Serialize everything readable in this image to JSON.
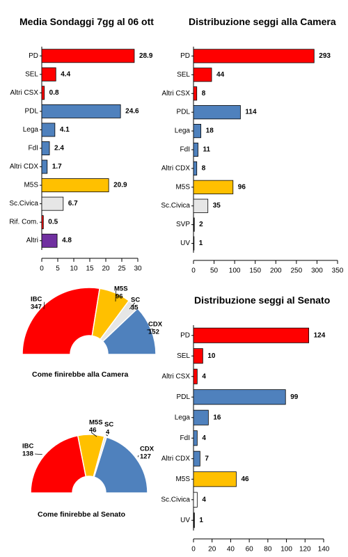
{
  "colors": {
    "red": "#ff0000",
    "blue": "#4f81bd",
    "yellow": "#ffc000",
    "grey": "#e6e6e6",
    "purple": "#7030a0",
    "white": "#ffffff",
    "black": "#000000"
  },
  "chart_data": [
    {
      "type": "bar",
      "orientation": "horizontal",
      "title": "Media Sondaggi 7gg al 06 ott",
      "categories": [
        "PD",
        "SEL",
        "Altri CSX",
        "PDL",
        "Lega",
        "FdI",
        "Altri CDX",
        "M5S",
        "Sc.Civica",
        "Rif. Com.",
        "Altri"
      ],
      "values": [
        28.9,
        4.4,
        0.8,
        24.6,
        4.1,
        2.4,
        1.7,
        20.9,
        6.7,
        0.5,
        4.8
      ],
      "labels": [
        "28.9",
        "4.4",
        "0.8",
        "24.6",
        "4.1",
        "2.4",
        "1.7",
        "20.9",
        "6.7",
        "0.5",
        "4.8"
      ],
      "bar_colors": [
        "red",
        "red",
        "red",
        "blue",
        "blue",
        "blue",
        "blue",
        "yellow",
        "grey",
        "red",
        "purple"
      ],
      "xlim": [
        0,
        30
      ],
      "xticks": [
        0,
        5,
        10,
        15,
        20,
        25,
        30
      ],
      "grid": false
    },
    {
      "type": "bar",
      "orientation": "horizontal",
      "title": "Distribuzione seggi alla Camera",
      "categories": [
        "PD",
        "SEL",
        "Altri CSX",
        "PDL",
        "Lega",
        "FdI",
        "Altri CDX",
        "M5S",
        "Sc.Civica",
        "SVP",
        "UV"
      ],
      "values": [
        293,
        44,
        8,
        114,
        18,
        11,
        8,
        96,
        35,
        2,
        1
      ],
      "labels": [
        "293",
        "44",
        "8",
        "114",
        "18",
        "11",
        "8",
        "96",
        "35",
        "2",
        "1"
      ],
      "bar_colors": [
        "red",
        "red",
        "red",
        "blue",
        "blue",
        "blue",
        "blue",
        "yellow",
        "grey",
        "black",
        "black"
      ],
      "xlim": [
        0,
        350
      ],
      "xticks": [
        0,
        50,
        100,
        150,
        200,
        250,
        300,
        350
      ],
      "grid": false
    },
    {
      "type": "bar",
      "orientation": "horizontal",
      "title": "Distribuzione seggi al Senato",
      "categories": [
        "PD",
        "SEL",
        "Altri CSX",
        "PDL",
        "Lega",
        "FdI",
        "Altri CDX",
        "M5S",
        "Sc.Civica",
        "UV"
      ],
      "values": [
        124,
        10,
        4,
        99,
        16,
        4,
        7,
        46,
        4,
        1
      ],
      "labels": [
        "124",
        "10",
        "4",
        "99",
        "16",
        "4",
        "7",
        "46",
        "4",
        "1"
      ],
      "bar_colors": [
        "red",
        "red",
        "red",
        "blue",
        "blue",
        "blue",
        "blue",
        "yellow",
        "white",
        "black"
      ],
      "xlim": [
        0,
        140
      ],
      "xticks": [
        0,
        20,
        40,
        60,
        80,
        100,
        120,
        140
      ],
      "grid": false
    },
    {
      "type": "pie",
      "subtype": "half-donut",
      "caption": "Come finirebbe alla Camera",
      "slices": [
        {
          "name": "IBC",
          "value": 347,
          "color": "red"
        },
        {
          "name": "M5S",
          "value": 96,
          "color": "yellow"
        },
        {
          "name": "SC",
          "value": 35,
          "color": "grey"
        },
        {
          "name": "CDX",
          "value": 152,
          "color": "blue"
        }
      ]
    },
    {
      "type": "pie",
      "subtype": "half-donut",
      "caption": "Come finirebbe al Senato",
      "slices": [
        {
          "name": "IBC",
          "value": 138,
          "color": "red"
        },
        {
          "name": "M5S",
          "value": 46,
          "color": "yellow"
        },
        {
          "name": "SC",
          "value": 4,
          "color": "grey"
        },
        {
          "name": "CDX",
          "value": 127,
          "color": "blue"
        }
      ]
    }
  ]
}
